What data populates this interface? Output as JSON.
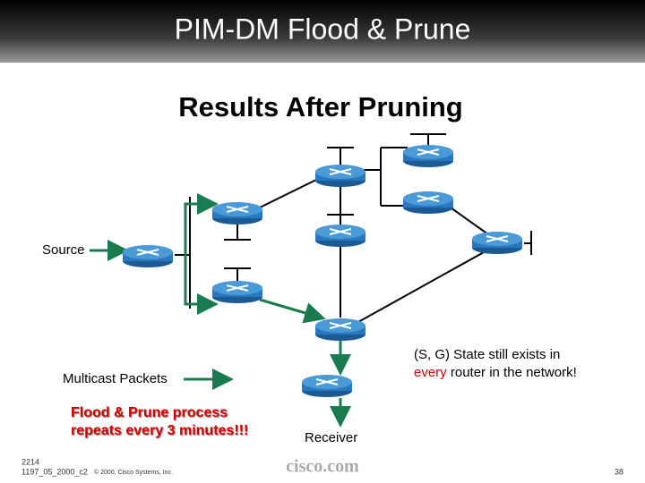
{
  "header": {
    "title": "PIM-DM Flood & Prune"
  },
  "subtitle": "Results After Pruning",
  "labels": {
    "source": "Source",
    "receiver": "Receiver",
    "legend": "Multicast Packets"
  },
  "note": {
    "line1": "(S, G) State still exists in",
    "line2_emphasis": "every",
    "line2_rest": "router in the network!"
  },
  "callout": {
    "line1": "Flood & Prune process",
    "line2": "repeats every 3 minutes!!!"
  },
  "footer": {
    "code": "2214",
    "id": "1197_05_2000_c2",
    "copyright": "© 2000, Cisco Systems, Inc.",
    "brand": "cisco.com",
    "page": "38"
  }
}
